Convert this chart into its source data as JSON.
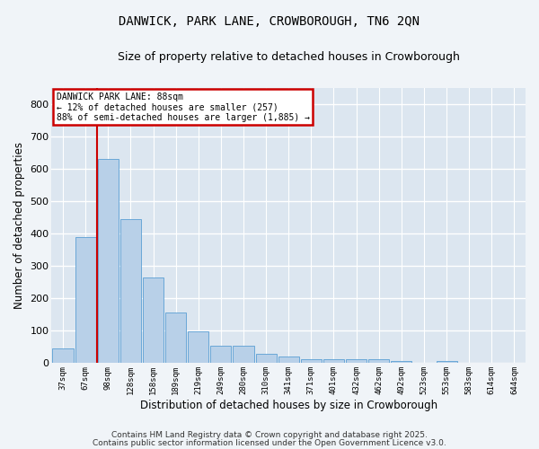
{
  "title_line1": "DANWICK, PARK LANE, CROWBOROUGH, TN6 2QN",
  "title_line2": "Size of property relative to detached houses in Crowborough",
  "xlabel": "Distribution of detached houses by size in Crowborough",
  "ylabel": "Number of detached properties",
  "categories": [
    "37sqm",
    "67sqm",
    "98sqm",
    "128sqm",
    "158sqm",
    "189sqm",
    "219sqm",
    "249sqm",
    "280sqm",
    "310sqm",
    "341sqm",
    "371sqm",
    "401sqm",
    "432sqm",
    "462sqm",
    "492sqm",
    "523sqm",
    "553sqm",
    "583sqm",
    "614sqm",
    "644sqm"
  ],
  "values": [
    45,
    390,
    630,
    445,
    265,
    155,
    98,
    53,
    53,
    28,
    18,
    12,
    12,
    12,
    12,
    5,
    0,
    5,
    0,
    0,
    0
  ],
  "bar_color": "#b8d0e8",
  "bar_edge_color": "#5a9fd4",
  "vline_color": "#cc0000",
  "annotation_title": "DANWICK PARK LANE: 88sqm",
  "annotation_line2": "← 12% of detached houses are smaller (257)",
  "annotation_line3": "88% of semi-detached houses are larger (1,885) →",
  "annotation_box_edge_color": "#cc0000",
  "ylim": [
    0,
    850
  ],
  "yticks": [
    0,
    100,
    200,
    300,
    400,
    500,
    600,
    700,
    800
  ],
  "axes_bg_color": "#dce6f0",
  "fig_bg_color": "#f0f4f8",
  "grid_color": "#ffffff",
  "footer_line1": "Contains HM Land Registry data © Crown copyright and database right 2025.",
  "footer_line2": "Contains public sector information licensed under the Open Government Licence v3.0."
}
